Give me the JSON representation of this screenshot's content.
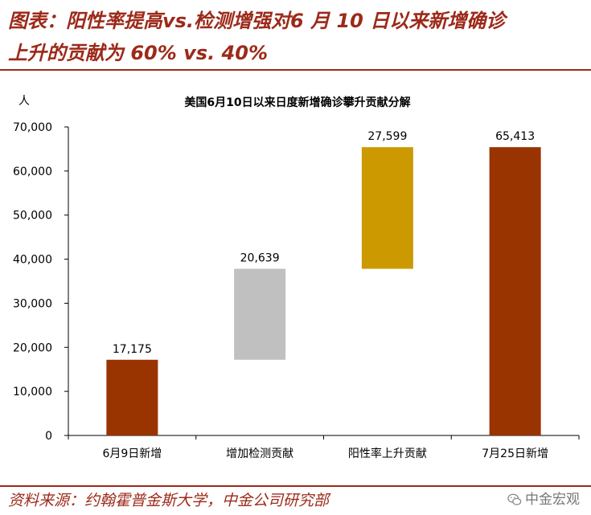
{
  "header": {
    "title_line1": "图表：阳性率提高vs.检测增强对6 月 10 日以来新增确诊",
    "title_line2": "上升的贡献为 60% vs. 40%"
  },
  "chart_data": {
    "type": "bar",
    "subtype": "waterfall",
    "title": "美国6月10日以来日度新增确诊攀升贡献分解",
    "ylabel": "人",
    "xlabel": "",
    "ylim": [
      0,
      70000
    ],
    "yticks": [
      "0",
      "10,000",
      "20,000",
      "30,000",
      "40,000",
      "50,000",
      "60,000",
      "70,000"
    ],
    "ytick_values": [
      0,
      10000,
      20000,
      30000,
      40000,
      50000,
      60000,
      70000
    ],
    "grid": false,
    "legend": "none",
    "categories": [
      "6月9日新增",
      "增加检测贡献",
      "阳性率上升贡献",
      "7月25日新增"
    ],
    "values": [
      17175,
      20639,
      27599,
      65413
    ],
    "base": [
      0,
      17175,
      37814,
      0
    ],
    "value_labels": [
      "17,175",
      "20,639",
      "27,599",
      "65,413"
    ],
    "colors": [
      "#993300",
      "#c0c0c0",
      "#cc9900",
      "#993300"
    ]
  },
  "footer": {
    "source": "资料来源：约翰霍普金斯大学，中金公司研究部",
    "watermark": "中金宏观",
    "watermark_icon": "wechat-icon"
  }
}
